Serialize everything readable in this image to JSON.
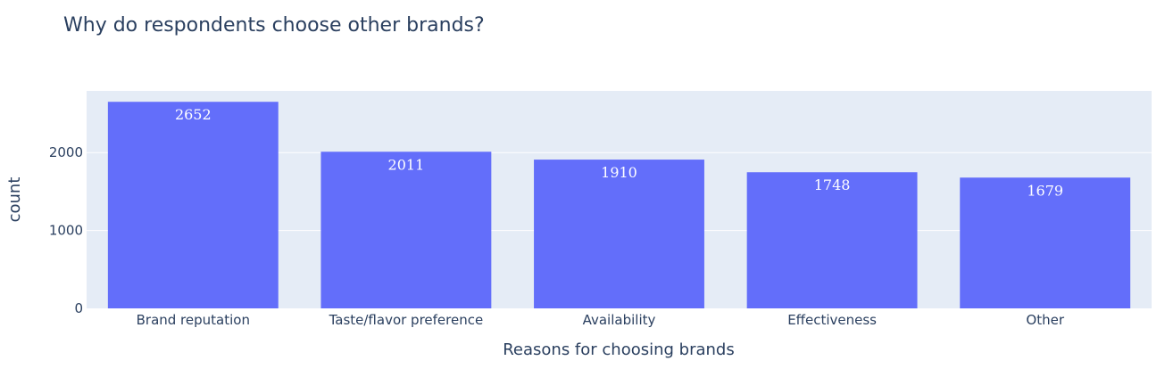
{
  "chart_data": {
    "type": "bar",
    "title": "Why do respondents choose other brands?",
    "xlabel": "Reasons for choosing brands",
    "ylabel": "count",
    "categories": [
      "Brand reputation",
      "Taste/flavor preference",
      "Availability",
      "Effectiveness",
      "Other"
    ],
    "values": [
      2652,
      2011,
      1910,
      1748,
      1679
    ],
    "data_labels": [
      "2652",
      "2011",
      "1910",
      "1748",
      "1679"
    ],
    "ylim": [
      0,
      2792
    ],
    "yticks": [
      0,
      1000,
      2000
    ],
    "ytick_labels": [
      "0",
      "1000",
      "2000"
    ],
    "grid": true,
    "legend": "none",
    "colors": {
      "bar": "#636efa",
      "plot_background": "#e5ecf6",
      "gridline": "#ffffff",
      "text": "#2a3f5f",
      "data_label": "#ffffff"
    }
  }
}
